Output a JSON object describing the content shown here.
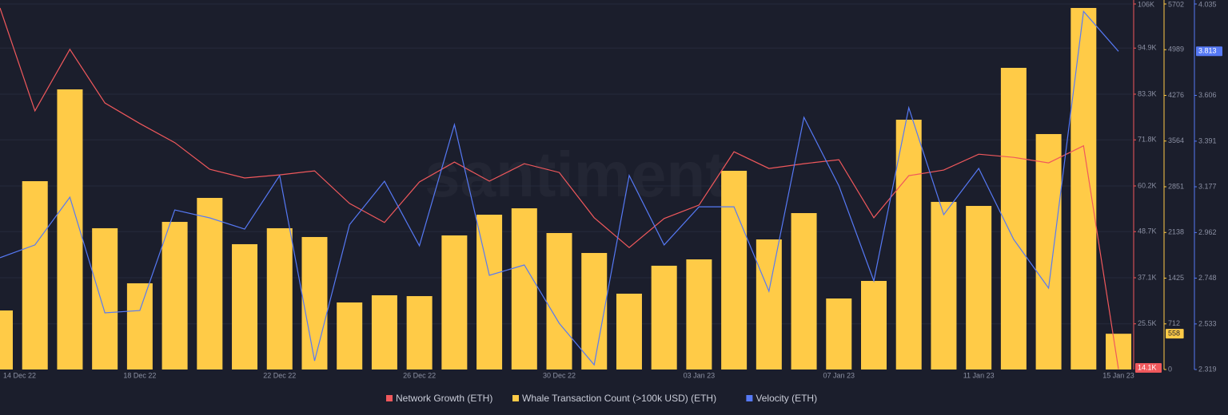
{
  "chart_data": {
    "type": "combo",
    "watermark": "santiment",
    "categories": [
      "14 Dec 22",
      null,
      null,
      null,
      "18 Dec 22",
      null,
      null,
      null,
      "22 Dec 22",
      null,
      null,
      null,
      "26 Dec 22",
      null,
      null,
      null,
      "30 Dec 22",
      null,
      null,
      null,
      "03 Jan 23",
      null,
      null,
      null,
      "07 Jan 23",
      null,
      null,
      null,
      "11 Jan 23",
      null,
      null,
      null,
      "15 Jan 23"
    ],
    "grid": true,
    "series": [
      {
        "name": "Network Growth (ETH)",
        "type": "line",
        "axis": "y",
        "color": "#f0585c",
        "values": [
          105000,
          79100,
          94600,
          81100,
          75900,
          71100,
          64400,
          62200,
          63000,
          64000,
          55800,
          51000,
          61200,
          66200,
          61400,
          65800,
          63600,
          52200,
          44700,
          52000,
          55400,
          68800,
          64600,
          65800,
          66800,
          52200,
          62800,
          64200,
          68200,
          67400,
          66000,
          70300,
          14100
        ],
        "value_labels": [
          null,
          null,
          null,
          null,
          null,
          null,
          null,
          null,
          null,
          null,
          null,
          null,
          null,
          null,
          null,
          null,
          null,
          null,
          null,
          null,
          null,
          null,
          null,
          null,
          null,
          null,
          null,
          null,
          null,
          null,
          null,
          null,
          "14.1K"
        ]
      },
      {
        "name": "Whale Transaction Count (>100k USD) (ETH)",
        "type": "bar",
        "axis": "y2",
        "color": "#ffcb47",
        "values": [
          921,
          2938,
          4370,
          2204,
          1345,
          2303,
          2677,
          1955,
          2204,
          2067,
          1046,
          1158,
          1145,
          2092,
          2415,
          2515,
          2129,
          1818,
          1183,
          1619,
          1718,
          3100,
          2029,
          2440,
          1108,
          1382,
          3897,
          2615,
          2552,
          4706,
          3673,
          5640,
          558
        ],
        "value_labels": [
          null,
          null,
          null,
          null,
          null,
          null,
          null,
          null,
          null,
          null,
          null,
          null,
          null,
          null,
          null,
          null,
          null,
          null,
          null,
          null,
          null,
          null,
          null,
          null,
          null,
          null,
          null,
          null,
          null,
          null,
          null,
          null,
          "558"
        ]
      },
      {
        "name": "Velocity (ETH)",
        "type": "line",
        "axis": "y3",
        "color": "#5679f5",
        "values": [
          2.844,
          2.904,
          3.128,
          2.585,
          2.596,
          3.068,
          3.031,
          2.978,
          3.23,
          2.36,
          2.999,
          3.203,
          2.9,
          3.469,
          2.761,
          2.81,
          2.536,
          2.341,
          3.23,
          2.904,
          3.083,
          3.083,
          2.686,
          3.503,
          3.181,
          2.735,
          3.548,
          3.046,
          3.263,
          2.93,
          2.701,
          4.0,
          3.813
        ],
        "value_labels": [
          null,
          null,
          null,
          null,
          null,
          null,
          null,
          null,
          null,
          null,
          null,
          null,
          null,
          null,
          null,
          null,
          null,
          null,
          null,
          null,
          null,
          null,
          null,
          null,
          null,
          null,
          null,
          null,
          null,
          null,
          null,
          null,
          "3.813"
        ]
      }
    ],
    "ylim": [
      14000,
      106000
    ],
    "yticks": [
      {
        "value": 106000,
        "label": "106K"
      },
      {
        "value": 94900,
        "label": "94.9K"
      },
      {
        "value": 83300,
        "label": "83.3K"
      },
      {
        "value": 71800,
        "label": "71.8K"
      },
      {
        "value": 60200,
        "label": "60.2K"
      },
      {
        "value": 48700,
        "label": "48.7K"
      },
      {
        "value": 37100,
        "label": "37.1K"
      },
      {
        "value": 25500,
        "label": "25.5K"
      }
    ],
    "y2lim": [
      0,
      5702
    ],
    "y2ticks": [
      5702,
      4989,
      4276,
      3564,
      2851,
      2138,
      1425,
      712,
      0
    ],
    "y3lim": [
      2.319,
      4.035
    ],
    "y3ticks": [
      4.035,
      3.606,
      3.391,
      3.177,
      2.962,
      2.748,
      2.533,
      2.319
    ]
  }
}
